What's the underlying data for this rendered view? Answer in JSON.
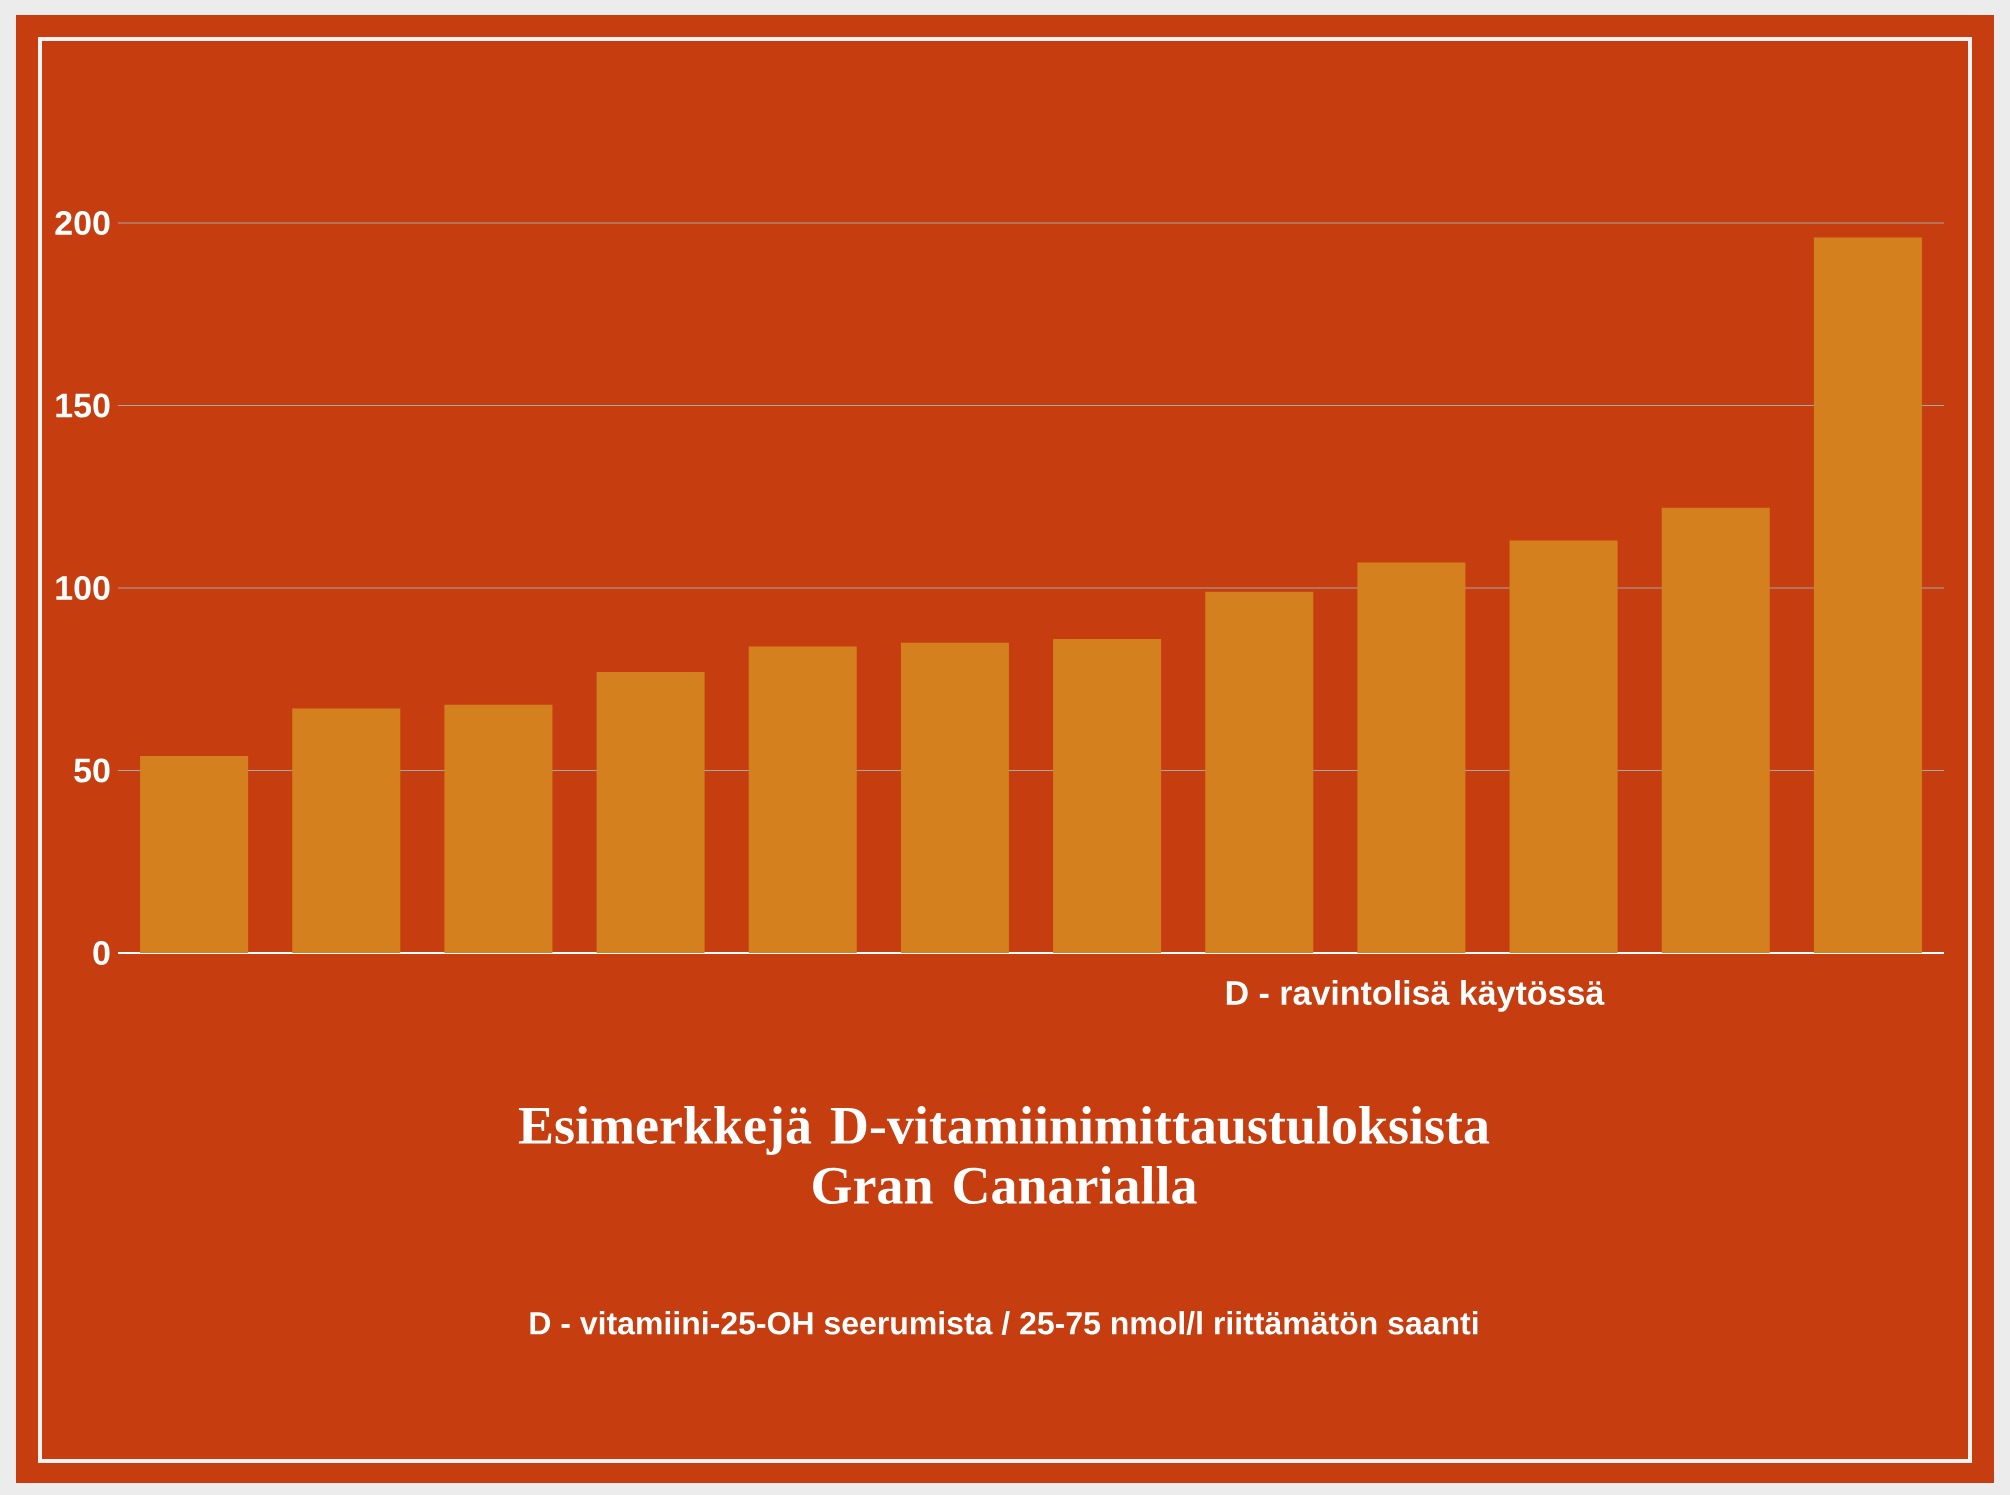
{
  "chart_data": {
    "type": "bar",
    "title": "Esimerkkejä D-vitamiinimittaustuloksista Gran Canarialla",
    "xlabel": "D - ravintolisä käytössä",
    "annotations": [
      "D - vitamiini-25-OH seerumista  / 25-75 nmol/l riittämätön saanti"
    ],
    "categories": [
      null,
      null,
      null,
      null,
      null,
      null,
      null,
      null,
      null,
      null,
      null,
      null
    ],
    "values": [
      54,
      67,
      68,
      77,
      84,
      85,
      86,
      99,
      107,
      113,
      122,
      196
    ],
    "color": "#d4801e",
    "ylim": [
      0,
      200
    ],
    "yticks": [
      0,
      50,
      100,
      150,
      200
    ],
    "grid": "y"
  }
}
